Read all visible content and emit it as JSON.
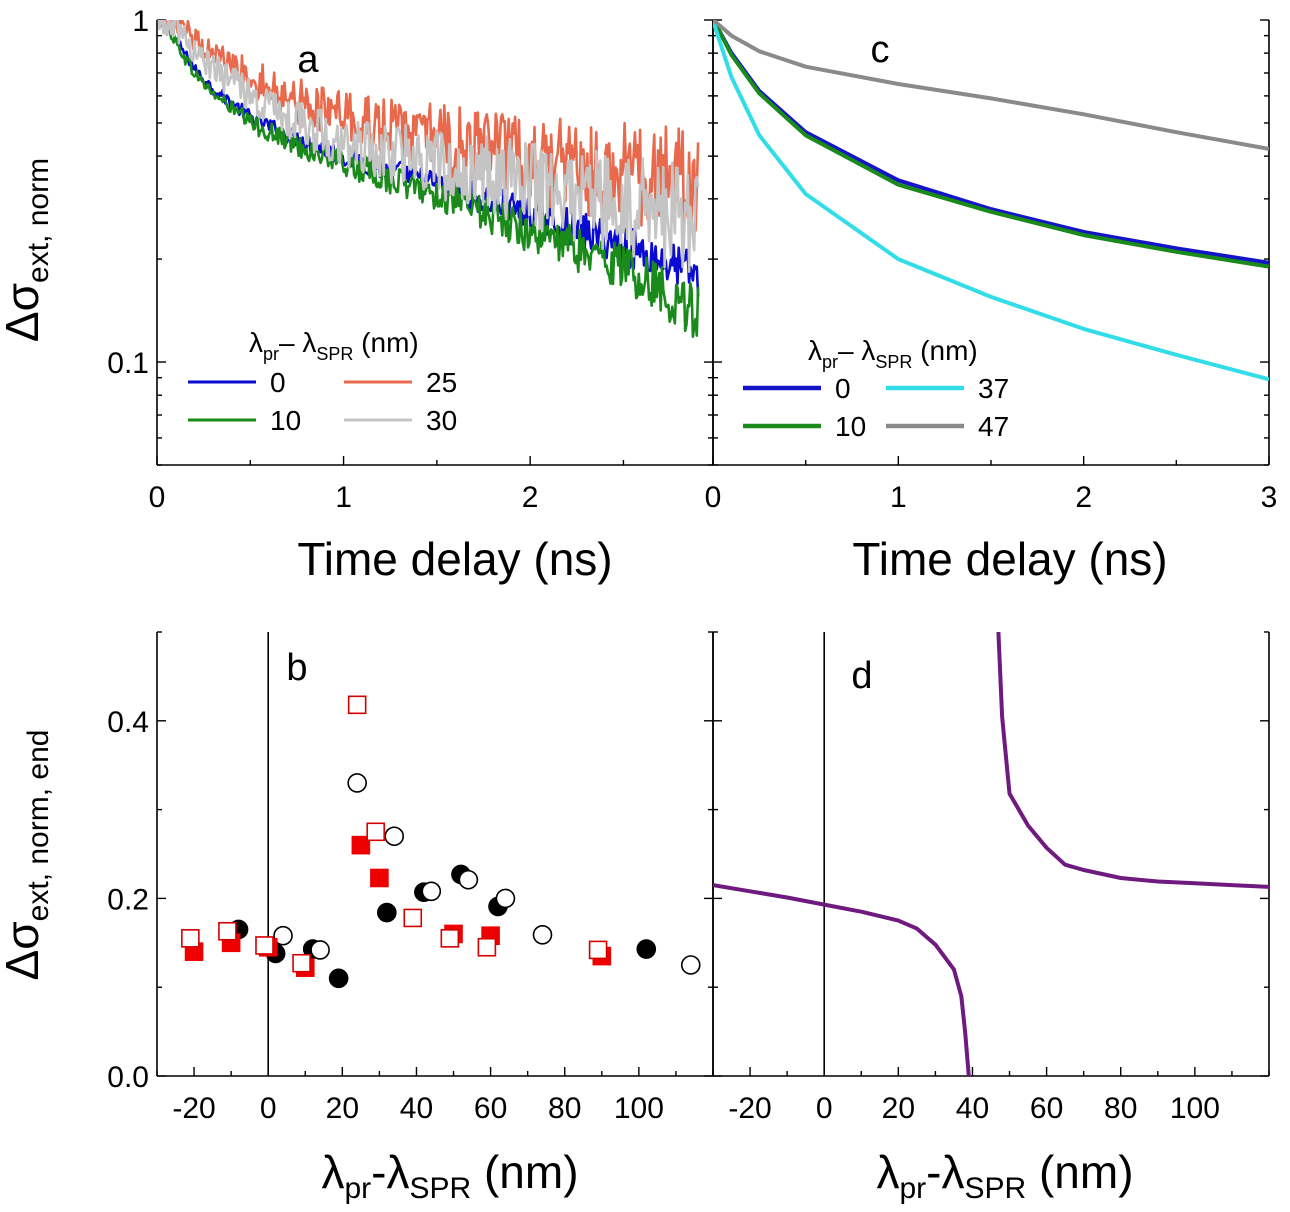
{
  "figure": {
    "shared": {
      "y_label_top": {
        "main": "Δσ",
        "sub": "ext, norm"
      },
      "y_label_bottom": {
        "main": "Δσ",
        "sub": "ext, norm, end"
      },
      "x_label_top": "Time delay (ns)",
      "x_label_bottom": {
        "a": "λ",
        "a_sub": "pr",
        "dash": "-λ",
        "b_sub": "SPR",
        "unit": " (nm)"
      }
    }
  },
  "chart_data": [
    {
      "panel": "a",
      "type": "line",
      "label": "a",
      "y_scale": "log",
      "xlim": [
        0,
        2.98
      ],
      "ylim": [
        0.05,
        1
      ],
      "x_ticks": [
        0,
        1,
        2
      ],
      "x_tick_labels": [
        "0",
        "1",
        "2"
      ],
      "y_ticks": [
        0.1,
        1
      ],
      "y_tick_labels": [
        "0.1",
        "1"
      ],
      "noisy": true,
      "legend": {
        "title": {
          "l1": "λ",
          "s1": "pr",
          "mid": "– λ",
          "s2": "SPR",
          "unit": " (nm)"
        },
        "placement": "bottom-left"
      },
      "series": [
        {
          "name": "0",
          "color": "#0a0ad0",
          "noise": 0.018,
          "x": [
            0,
            0.05,
            0.1,
            0.2,
            0.3,
            0.5,
            0.75,
            1.0,
            1.5,
            2.0,
            2.5,
            2.9
          ],
          "y": [
            1.0,
            0.98,
            0.88,
            0.72,
            0.63,
            0.52,
            0.45,
            0.4,
            0.33,
            0.27,
            0.22,
            0.18
          ]
        },
        {
          "name": "10",
          "color": "#1a8a1a",
          "noise": 0.022,
          "x": [
            0,
            0.05,
            0.1,
            0.2,
            0.3,
            0.5,
            0.75,
            1.0,
            1.5,
            2.0,
            2.5,
            2.9
          ],
          "y": [
            1.0,
            0.97,
            0.86,
            0.7,
            0.61,
            0.5,
            0.43,
            0.38,
            0.31,
            0.24,
            0.19,
            0.14
          ]
        },
        {
          "name": "25",
          "color": "#e8694c",
          "noise": 0.045,
          "x": [
            0,
            0.1,
            0.2,
            0.3,
            0.5,
            0.75,
            1.0,
            1.5,
            2.0,
            2.5,
            2.9
          ],
          "y": [
            1.0,
            0.97,
            0.88,
            0.8,
            0.68,
            0.58,
            0.52,
            0.45,
            0.39,
            0.36,
            0.33
          ]
        },
        {
          "name": "30",
          "color": "#c4c4c4",
          "noise": 0.045,
          "x": [
            0,
            0.1,
            0.2,
            0.3,
            0.5,
            0.75,
            1.0,
            1.5,
            2.0,
            2.5,
            2.9
          ],
          "y": [
            1.0,
            0.95,
            0.82,
            0.72,
            0.6,
            0.5,
            0.44,
            0.38,
            0.33,
            0.29,
            0.26
          ]
        }
      ]
    },
    {
      "panel": "c",
      "type": "line",
      "label": "c",
      "y_scale": "log",
      "xlim": [
        0,
        3
      ],
      "ylim": [
        0.05,
        1
      ],
      "x_ticks": [
        0,
        1,
        2,
        3
      ],
      "x_tick_labels": [
        "0",
        "1",
        "2",
        "3"
      ],
      "noisy": false,
      "legend": {
        "title": {
          "l1": "λ",
          "s1": "pr",
          "mid": "– λ",
          "s2": "SPR",
          "unit": " (nm)"
        },
        "placement": "bottom-left"
      },
      "series": [
        {
          "name": "0",
          "color": "#1414c8",
          "x": [
            0,
            0.02,
            0.1,
            0.25,
            0.5,
            1.0,
            1.5,
            2.0,
            2.5,
            3.0
          ],
          "y": [
            1.0,
            0.96,
            0.8,
            0.62,
            0.47,
            0.34,
            0.28,
            0.24,
            0.215,
            0.195
          ]
        },
        {
          "name": "10",
          "color": "#1a8a1a",
          "x": [
            0,
            0.02,
            0.1,
            0.25,
            0.5,
            1.0,
            1.5,
            2.0,
            2.5,
            3.0
          ],
          "y": [
            1.0,
            0.96,
            0.79,
            0.61,
            0.46,
            0.33,
            0.275,
            0.235,
            0.21,
            0.19
          ]
        },
        {
          "name": "37",
          "color": "#33dde8",
          "x": [
            0,
            0.02,
            0.1,
            0.25,
            0.5,
            1.0,
            1.5,
            2.0,
            2.5,
            3.0
          ],
          "y": [
            1.0,
            0.92,
            0.68,
            0.46,
            0.31,
            0.2,
            0.155,
            0.125,
            0.105,
            0.089
          ]
        },
        {
          "name": "47",
          "color": "#8a8a8a",
          "x": [
            0,
            0.02,
            0.1,
            0.25,
            0.5,
            1.0,
            1.5,
            2.0,
            2.5,
            3.0
          ],
          "y": [
            1.0,
            0.98,
            0.9,
            0.81,
            0.73,
            0.65,
            0.59,
            0.53,
            0.47,
            0.42
          ]
        }
      ]
    },
    {
      "panel": "b",
      "type": "scatter",
      "label": "b",
      "xlim": [
        -30,
        120
      ],
      "ylim": [
        0,
        0.5
      ],
      "x_ticks": [
        -20,
        0,
        20,
        40,
        60,
        80,
        100
      ],
      "x_tick_labels": [
        "-20",
        "0",
        "20",
        "40",
        "60",
        "80",
        "100"
      ],
      "y_ticks": [
        0,
        0.2,
        0.4
      ],
      "y_tick_labels": [
        "0.0",
        "0.2",
        "0.4"
      ],
      "vline_x": 0,
      "series": [
        {
          "name": "",
          "marker": "circle",
          "fill": "#000000",
          "stroke": "#000000",
          "points": [
            [
              -8,
              0.165
            ],
            [
              2,
              0.138
            ],
            [
              12,
              0.143
            ],
            [
              19,
              0.11
            ],
            [
              32,
              0.184
            ],
            [
              42,
              0.207
            ],
            [
              52,
              0.227
            ],
            [
              62,
              0.191
            ],
            [
              102,
              0.143
            ]
          ]
        },
        {
          "name": "",
          "marker": "circle",
          "fill": "#ffffff",
          "stroke": "#000000",
          "points": [
            [
              4,
              0.158
            ],
            [
              14,
              0.142
            ],
            [
              24,
              0.33
            ],
            [
              34,
              0.27
            ],
            [
              44,
              0.208
            ],
            [
              54,
              0.221
            ],
            [
              64,
              0.2
            ],
            [
              74,
              0.159
            ],
            [
              114,
              0.125
            ]
          ]
        },
        {
          "name": "",
          "marker": "square",
          "fill": "#ee0000",
          "stroke": "#ee0000",
          "points": [
            [
              -20,
              0.14
            ],
            [
              -10,
              0.15
            ],
            [
              0,
              0.145
            ],
            [
              10,
              0.122
            ],
            [
              25,
              0.26
            ],
            [
              30,
              0.223
            ],
            [
              50,
              0.16
            ],
            [
              60,
              0.158
            ],
            [
              90,
              0.135
            ]
          ]
        },
        {
          "name": "",
          "marker": "square",
          "fill": "#ffffff",
          "stroke": "#d40000",
          "points": [
            [
              -21,
              0.155
            ],
            [
              -11,
              0.163
            ],
            [
              -1,
              0.147
            ],
            [
              9,
              0.127
            ],
            [
              24,
              0.418
            ],
            [
              29,
              0.275
            ],
            [
              39,
              0.178
            ],
            [
              49,
              0.155
            ],
            [
              59,
              0.145
            ],
            [
              89,
              0.142
            ]
          ]
        }
      ]
    },
    {
      "panel": "d",
      "type": "line",
      "label": "d",
      "xlim": [
        -30,
        120
      ],
      "ylim": [
        0,
        0.5
      ],
      "x_ticks": [
        -20,
        0,
        20,
        40,
        60,
        80,
        100
      ],
      "x_tick_labels": [
        "-20",
        "0",
        "20",
        "40",
        "60",
        "80",
        "100"
      ],
      "vline_x": 0,
      "series": [
        {
          "name": "",
          "color": "#6e1a7e",
          "x": [
            -30,
            -20,
            -10,
            0,
            10,
            20,
            25,
            30,
            35,
            37,
            38,
            39
          ],
          "y": [
            0.215,
            0.208,
            0.201,
            0.193,
            0.185,
            0.175,
            0.166,
            0.148,
            0.12,
            0.09,
            0.05,
            0.0
          ]
        },
        {
          "name": "",
          "color": "#6e1a7e",
          "x": [
            47,
            48,
            50,
            55,
            60,
            65,
            70,
            80,
            90,
            100,
            110,
            120
          ],
          "y": [
            0.5,
            0.405,
            0.318,
            0.282,
            0.257,
            0.238,
            0.232,
            0.223,
            0.219,
            0.217,
            0.215,
            0.213
          ]
        }
      ]
    }
  ]
}
